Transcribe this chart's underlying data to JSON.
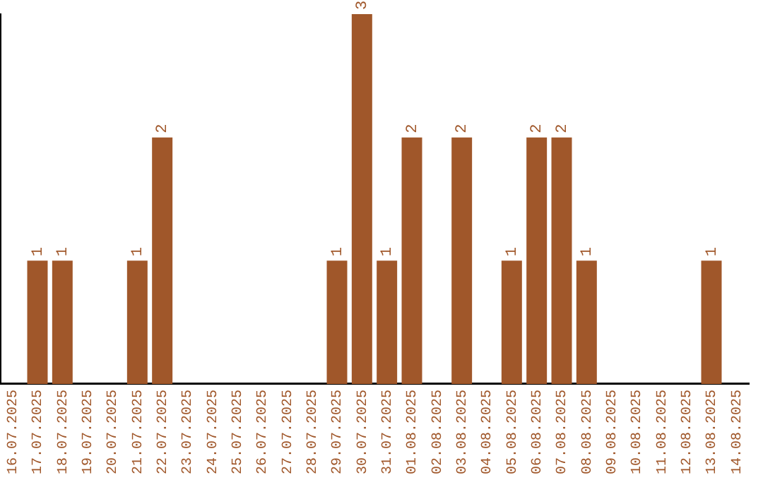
{
  "chart_data": {
    "type": "bar",
    "categories": [
      "16.07.2025",
      "17.07.2025",
      "18.07.2025",
      "19.07.2025",
      "20.07.2025",
      "21.07.2025",
      "22.07.2025",
      "23.07.2025",
      "24.07.2025",
      "25.07.2025",
      "26.07.2025",
      "27.07.2025",
      "28.07.2025",
      "29.07.2025",
      "30.07.2025",
      "31.07.2025",
      "01.08.2025",
      "02.08.2025",
      "03.08.2025",
      "04.08.2025",
      "05.08.2025",
      "06.08.2025",
      "07.08.2025",
      "08.08.2025",
      "09.08.2025",
      "10.08.2025",
      "11.08.2025",
      "12.08.2025",
      "13.08.2025",
      "14.08.2025"
    ],
    "values": [
      0,
      1,
      1,
      0,
      0,
      1,
      2,
      0,
      0,
      0,
      0,
      0,
      0,
      1,
      3,
      1,
      2,
      0,
      2,
      0,
      1,
      2,
      2,
      1,
      0,
      0,
      0,
      0,
      1,
      0
    ],
    "value_labels": [
      null,
      "1",
      "1",
      null,
      null,
      "1",
      "2",
      null,
      null,
      null,
      null,
      null,
      null,
      "1",
      "3",
      "1",
      "2",
      null,
      "2",
      null,
      "1",
      "2",
      "2",
      "1",
      null,
      null,
      null,
      null,
      "1",
      null
    ],
    "color": "#a0572a",
    "ylim": [
      0,
      3
    ],
    "tick_labels": "x",
    "grid": false,
    "legend": false
  }
}
